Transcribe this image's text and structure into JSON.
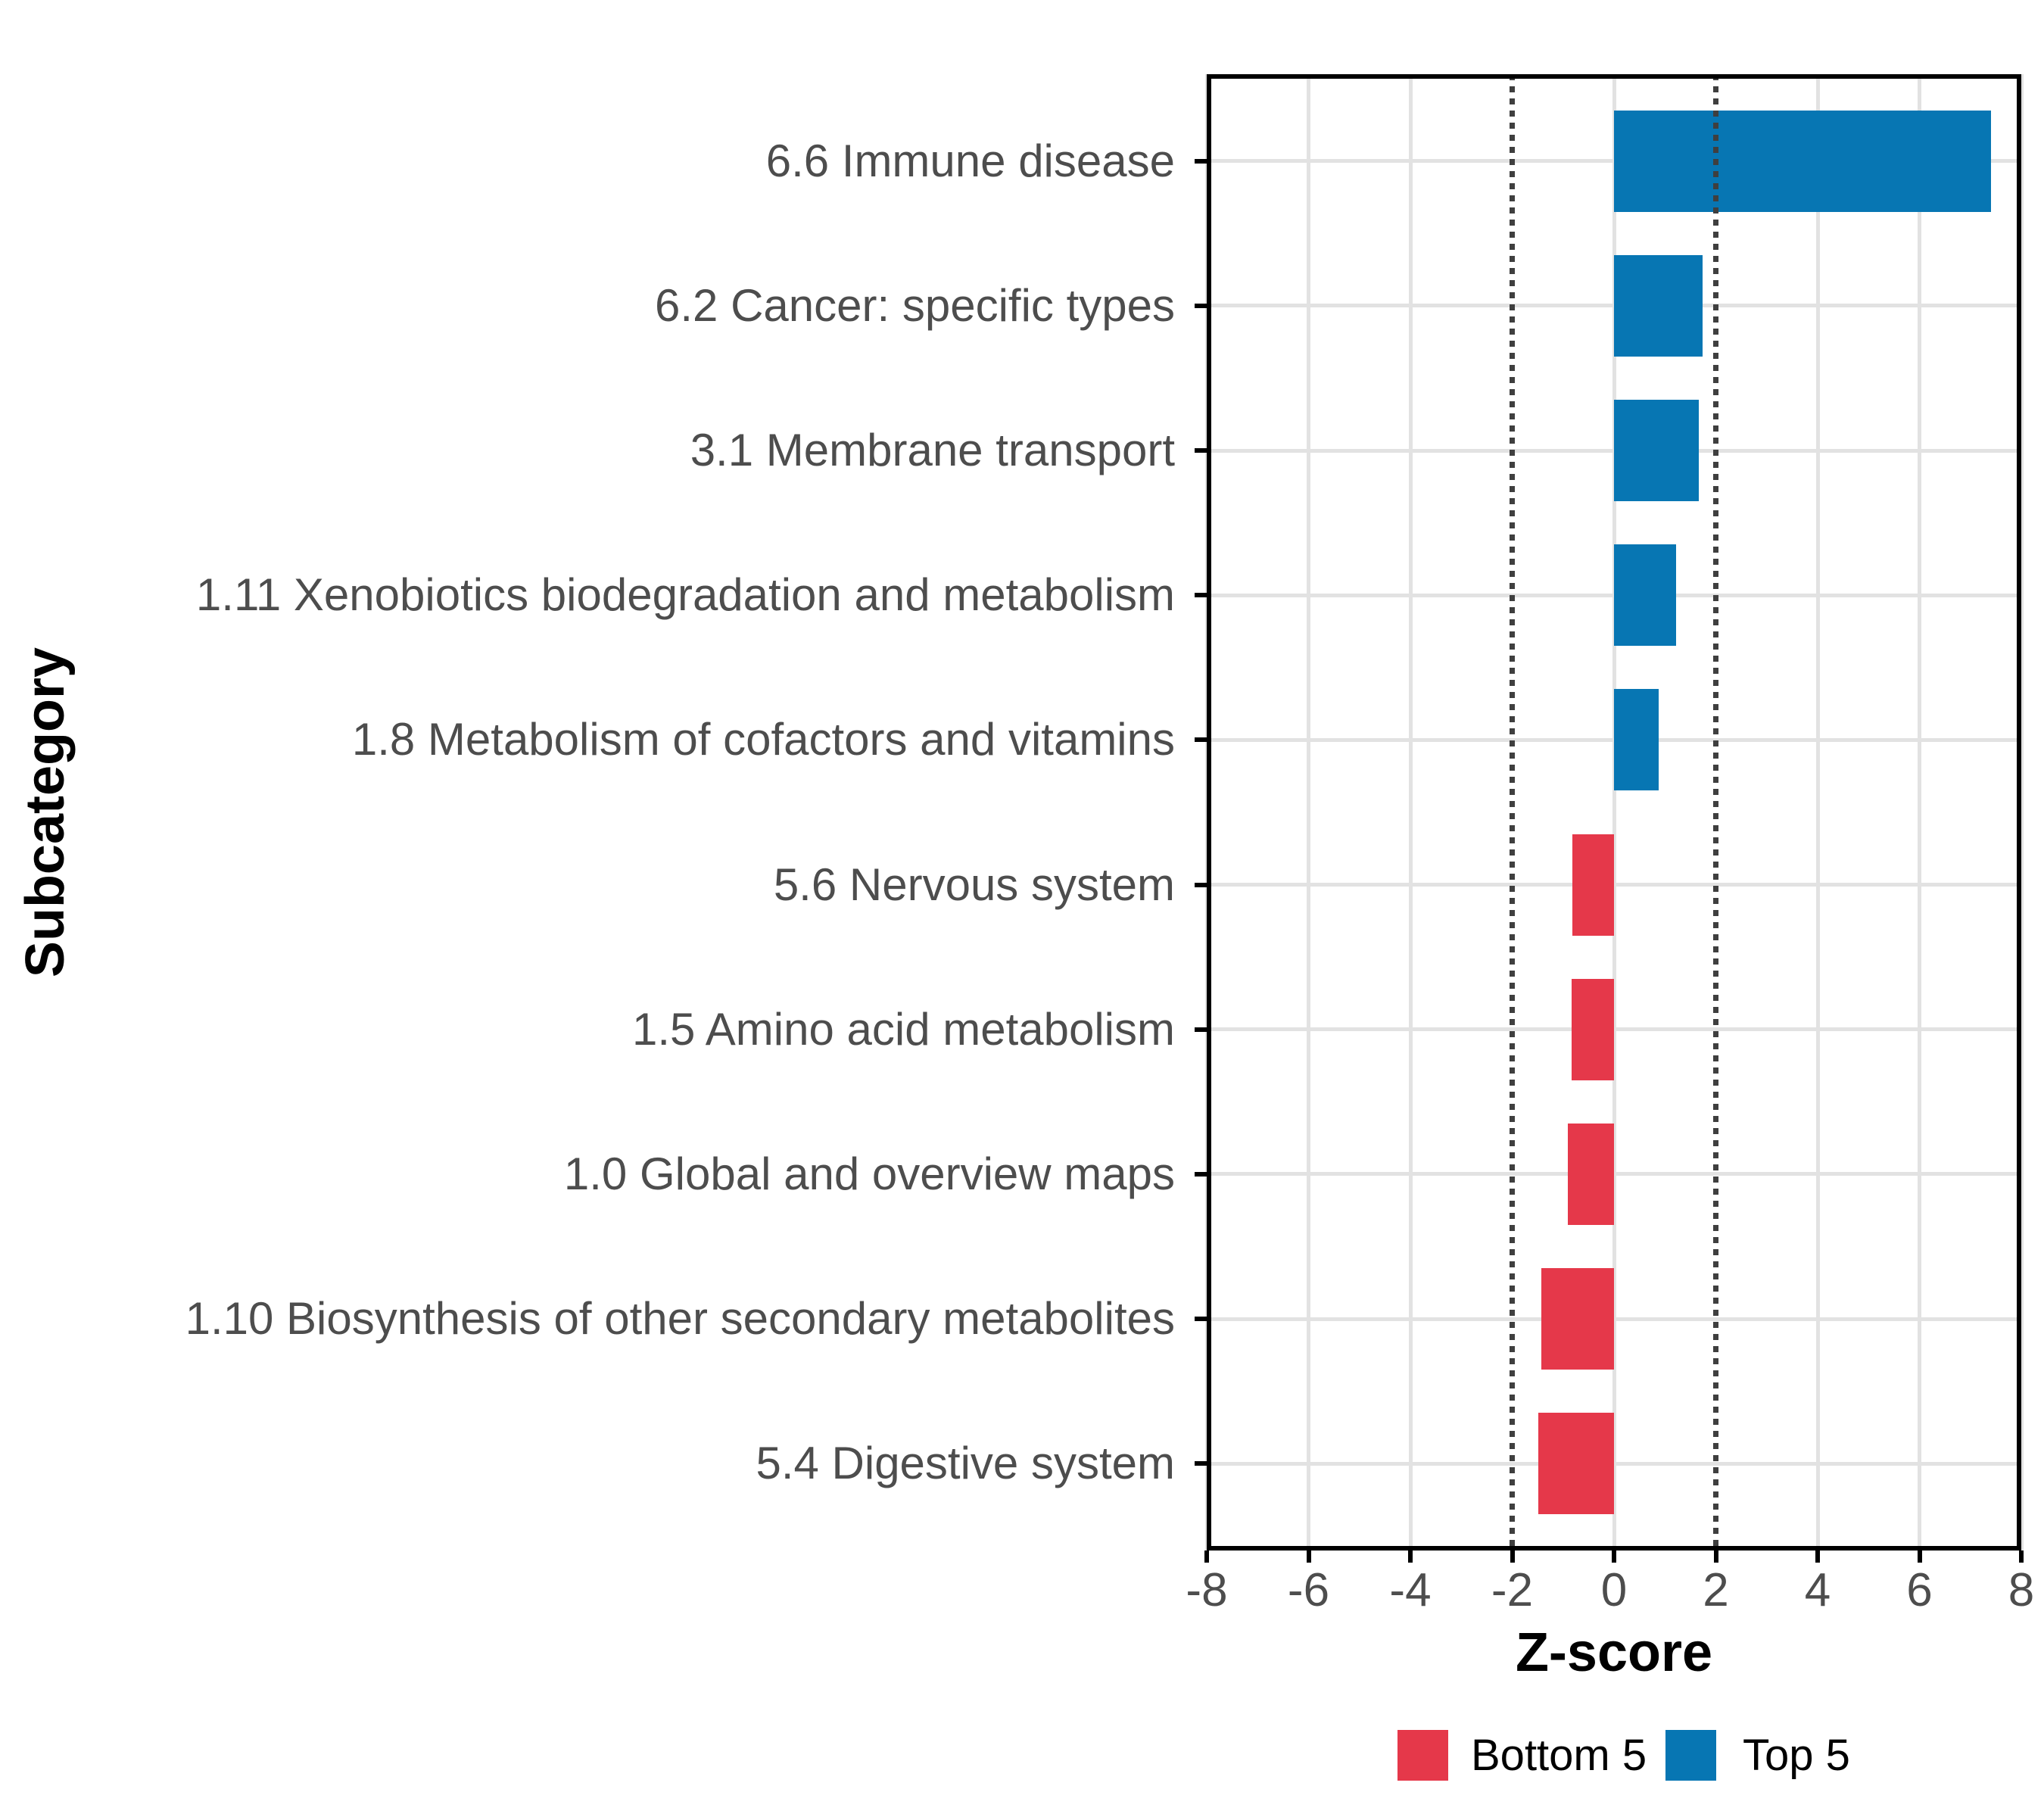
{
  "figure": {
    "background": "#ffffff",
    "accent_blue": "#0776b3",
    "accent_red": "#e5384a",
    "grid_color": "#e2e2e2",
    "axis_text_color": "#4d4d4d",
    "refline_color": "#3f3f3f"
  },
  "chart_data": {
    "type": "bar",
    "orientation": "horizontal",
    "title": "",
    "xlabel": "Z-score",
    "ylabel": "Subcategory",
    "xlim": [
      -8,
      8
    ],
    "x_ticks": [
      -8,
      -6,
      -4,
      -2,
      0,
      2,
      4,
      6,
      8
    ],
    "grid": {
      "major": true,
      "minor": false,
      "x_major_step": 2,
      "y_major": "category-centers"
    },
    "reference_lines": {
      "x": [
        -2,
        2
      ],
      "style": "dotted"
    },
    "bar_width_fraction": 0.7,
    "categories": [
      "6.6 Immune disease",
      "6.2 Cancer: specific types",
      "3.1 Membrane transport",
      "1.11 Xenobiotics biodegradation and metabolism",
      "1.8 Metabolism of cofactors and vitamins",
      "5.6 Nervous system",
      "1.5 Amino acid metabolism",
      "1.0 Global and overview maps",
      "1.10 Biosynthesis of other secondary metabolites",
      "5.4 Digestive system"
    ],
    "values": [
      7.4,
      1.74,
      1.67,
      1.22,
      0.87,
      -0.82,
      -0.83,
      -0.9,
      -1.43,
      -1.48
    ],
    "groups": [
      "Top 5",
      "Top 5",
      "Top 5",
      "Top 5",
      "Top 5",
      "Bottom 5",
      "Bottom 5",
      "Bottom 5",
      "Bottom 5",
      "Bottom 5"
    ],
    "legend": {
      "position": "bottom-center",
      "items": [
        {
          "label": "Bottom 5",
          "color": "#e5384a"
        },
        {
          "label": "Top 5",
          "color": "#0776b3"
        }
      ]
    }
  }
}
